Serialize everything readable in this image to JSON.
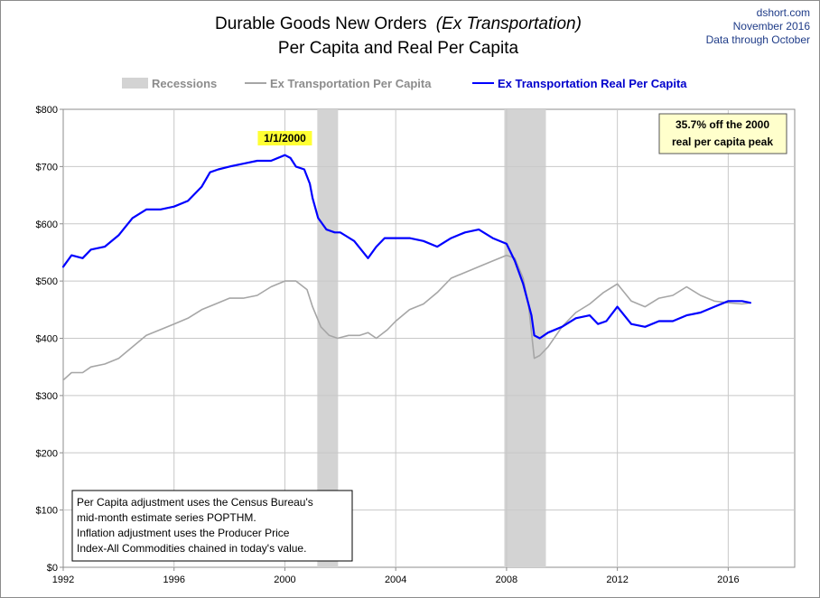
{
  "chart_data": {
    "type": "line",
    "title": "Durable Goods New Orders",
    "title_italic": "(Ex Transportation)",
    "subtitle": "Per Capita and Real Per Capita",
    "source": [
      "dshort.com",
      "November 2016",
      "Data through October"
    ],
    "xlim": [
      1992,
      2018.4
    ],
    "ylim": [
      0,
      800
    ],
    "x_ticks": [
      1992,
      1996,
      2000,
      2004,
      2008,
      2012,
      2016
    ],
    "y_ticks": [
      {
        "value": 0,
        "label": "$0"
      },
      {
        "value": 100,
        "label": "$100"
      },
      {
        "value": 200,
        "label": "$200"
      },
      {
        "value": 300,
        "label": "$300"
      },
      {
        "value": 400,
        "label": "$400"
      },
      {
        "value": 500,
        "label": "$500"
      },
      {
        "value": 600,
        "label": "$600"
      },
      {
        "value": 700,
        "label": "$700"
      },
      {
        "value": 800,
        "label": "$800"
      }
    ],
    "grid": true,
    "legend_position": "top",
    "recessions": [
      {
        "start": 2001.17,
        "end": 2001.92
      },
      {
        "start": 2007.92,
        "end": 2009.42
      }
    ],
    "series": [
      {
        "name": "Ex Transportation Per Capita",
        "color": "#a6a6a6",
        "x": [
          1992,
          1992.3,
          1992.7,
          1993,
          1993.5,
          1994,
          1994.5,
          1995,
          1995.5,
          1996,
          1996.5,
          1997,
          1997.5,
          1998,
          1998.5,
          1999,
          1999.5,
          2000,
          2000.4,
          2000.8,
          2001,
          2001.3,
          2001.6,
          2001.9,
          2002.3,
          2002.7,
          2003,
          2003.3,
          2003.7,
          2004,
          2004.5,
          2005,
          2005.5,
          2006,
          2006.5,
          2007,
          2007.5,
          2008,
          2008.3,
          2008.6,
          2008.8,
          2009,
          2009.2,
          2009.5,
          2010,
          2010.5,
          2011,
          2011.5,
          2012,
          2012.5,
          2013,
          2013.5,
          2014,
          2014.5,
          2015,
          2015.5,
          2016,
          2016.5,
          2016.8
        ],
        "values": [
          327,
          340,
          340,
          350,
          355,
          365,
          385,
          405,
          415,
          425,
          435,
          450,
          460,
          470,
          470,
          475,
          490,
          500,
          500,
          485,
          455,
          420,
          405,
          400,
          405,
          405,
          410,
          400,
          415,
          430,
          450,
          460,
          480,
          505,
          515,
          525,
          535,
          545,
          540,
          505,
          455,
          365,
          370,
          385,
          420,
          445,
          460,
          480,
          495,
          465,
          455,
          470,
          475,
          490,
          475,
          465,
          462,
          460,
          462
        ]
      },
      {
        "name": "Ex Transportation Real Per Capita",
        "color": "#0000ff",
        "x": [
          1992,
          1992.3,
          1992.7,
          1993,
          1993.5,
          1994,
          1994.5,
          1995,
          1995.5,
          1996,
          1996.5,
          1997,
          1997.3,
          1997.6,
          1998,
          1998.5,
          1999,
          1999.5,
          2000,
          2000.2,
          2000.4,
          2000.7,
          2000.9,
          2001,
          2001.2,
          2001.5,
          2001.8,
          2002,
          2002.5,
          2003,
          2003.3,
          2003.6,
          2004,
          2004.5,
          2005,
          2005.5,
          2006,
          2006.5,
          2007,
          2007.5,
          2008,
          2008.3,
          2008.6,
          2008.9,
          2009,
          2009.2,
          2009.5,
          2010,
          2010.5,
          2011,
          2011.3,
          2011.6,
          2012,
          2012.5,
          2013,
          2013.5,
          2014,
          2014.5,
          2015,
          2015.5,
          2016,
          2016.5,
          2016.8
        ],
        "values": [
          525,
          545,
          540,
          555,
          560,
          580,
          610,
          625,
          625,
          630,
          640,
          665,
          690,
          695,
          700,
          705,
          710,
          710,
          720,
          715,
          700,
          695,
          670,
          645,
          610,
          590,
          585,
          585,
          570,
          540,
          560,
          575,
          575,
          575,
          570,
          560,
          575,
          585,
          590,
          575,
          565,
          535,
          495,
          440,
          405,
          400,
          410,
          420,
          435,
          440,
          425,
          430,
          455,
          425,
          420,
          430,
          430,
          440,
          445,
          455,
          465,
          465,
          462
        ]
      }
    ],
    "annotations": {
      "peak_label": {
        "x": 2000,
        "y": 718,
        "text": "1/1/2000"
      },
      "callout": [
        "35.7% off the 2000",
        "real per capita peak"
      ]
    },
    "legend": [
      {
        "name": "Recessions",
        "color": "#d3d3d3",
        "kind": "band"
      },
      {
        "name": "Ex Transportation Per Capita",
        "color": "#a6a6a6",
        "kind": "line"
      },
      {
        "name": "Ex Transportation Real Per Capita",
        "color": "#0000ff",
        "kind": "line"
      }
    ],
    "note": [
      "Per Capita adjustment uses the Census Bureau's",
      "mid-month estimate series POPTHM.",
      "Inflation adjustment uses the Producer Price",
      "Index-All Commodities chained in today's value."
    ]
  }
}
